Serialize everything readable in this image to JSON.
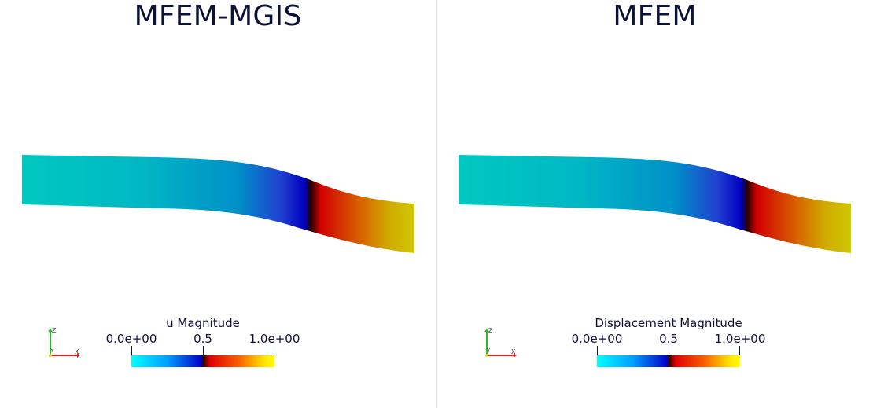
{
  "panes": [
    {
      "title": "MFEM-MGIS",
      "colorbar": {
        "title": "u Magnitude",
        "min_label": "0.0e+00",
        "mid_label": "0.5",
        "max_label": "1.0e+00"
      },
      "axes": {
        "z": "Z",
        "y": "Y",
        "x": "X"
      }
    },
    {
      "title": "MFEM",
      "colorbar": {
        "title": "Displacement Magnitude",
        "min_label": "0.0e+00",
        "mid_label": "0.5",
        "max_label": "1.0e+00"
      },
      "axes": {
        "z": "Z",
        "y": "Y",
        "x": "X"
      }
    }
  ],
  "colors": {
    "title_text": "#0c1238",
    "cyan": "#00c8c0",
    "blue": "#0000c0",
    "red": "#d80000",
    "yellow": "#d0c800"
  }
}
